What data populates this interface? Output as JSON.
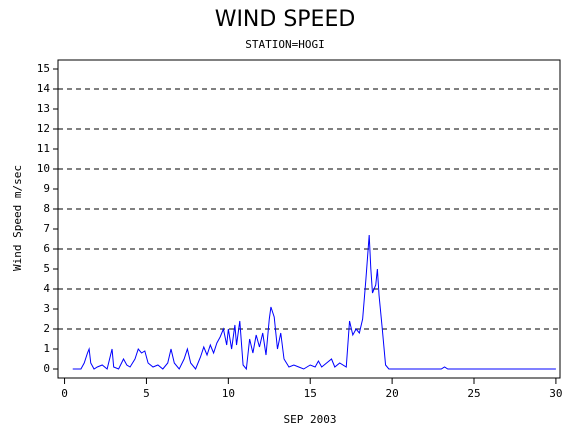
{
  "chart_data": {
    "type": "line",
    "title": "WIND SPEED",
    "subtitle": "STATION=HOGI",
    "x_label": "SEP 2003",
    "y_label": "Wind Speed m/sec",
    "x": [
      0.5,
      1.0,
      1.2,
      1.4,
      1.5,
      1.6,
      1.8,
      2.0,
      2.3,
      2.6,
      2.9,
      3.0,
      3.3,
      3.6,
      3.8,
      4.0,
      4.3,
      4.5,
      4.7,
      4.9,
      5.1,
      5.4,
      5.7,
      6.0,
      6.3,
      6.5,
      6.7,
      7.0,
      7.3,
      7.5,
      7.7,
      8.0,
      8.3,
      8.5,
      8.7,
      8.9,
      9.1,
      9.3,
      9.5,
      9.7,
      9.9,
      10.0,
      10.2,
      10.4,
      10.5,
      10.7,
      10.9,
      11.1,
      11.3,
      11.5,
      11.7,
      11.9,
      12.1,
      12.3,
      12.5,
      12.6,
      12.8,
      13.0,
      13.2,
      13.4,
      13.7,
      14.0,
      14.3,
      14.6,
      15.0,
      15.3,
      15.5,
      15.7,
      16.0,
      16.3,
      16.5,
      16.8,
      17.2,
      17.4,
      17.6,
      17.8,
      18.0,
      18.2,
      18.4,
      18.6,
      18.7,
      18.8,
      19.0,
      19.1,
      19.2,
      19.4,
      19.6,
      19.8,
      23.0,
      23.2,
      23.4,
      30.0
    ],
    "series": [
      {
        "name": "Wind Speed",
        "color": "#0000ff",
        "values": [
          0,
          0,
          0.3,
          0.8,
          1.0,
          0.3,
          0,
          0.1,
          0.2,
          0,
          1.0,
          0.1,
          0,
          0.5,
          0.2,
          0.1,
          0.5,
          1.0,
          0.8,
          0.9,
          0.3,
          0.1,
          0.2,
          0,
          0.3,
          1.0,
          0.3,
          0,
          0.5,
          1.0,
          0.3,
          0,
          0.6,
          1.1,
          0.7,
          1.2,
          0.8,
          1.3,
          1.6,
          2.0,
          1.2,
          2.0,
          1.0,
          2.2,
          1.2,
          2.4,
          0.2,
          0,
          1.5,
          0.8,
          1.7,
          1.1,
          1.8,
          0.7,
          2.5,
          3.1,
          2.6,
          1.0,
          1.8,
          0.5,
          0.1,
          0.2,
          0.1,
          0,
          0.2,
          0.1,
          0.4,
          0.1,
          0.3,
          0.5,
          0.1,
          0.3,
          0.1,
          2.4,
          1.7,
          2.0,
          1.8,
          2.5,
          4.5,
          6.7,
          5.0,
          3.8,
          4.2,
          5.0,
          3.7,
          2.0,
          0.2,
          0,
          0,
          0.1,
          0,
          0
        ]
      }
    ],
    "xlim": [
      -0.4,
      30.25
    ],
    "xticks": [
      0,
      5,
      10,
      15,
      20,
      25,
      30
    ],
    "ylim": [
      -0.45,
      15.45
    ],
    "yticks": [
      0,
      1,
      2,
      3,
      4,
      5,
      6,
      7,
      8,
      9,
      10,
      11,
      12,
      13,
      14,
      15
    ],
    "grid_lines": [
      2,
      4,
      6,
      8,
      10,
      12,
      14
    ]
  }
}
